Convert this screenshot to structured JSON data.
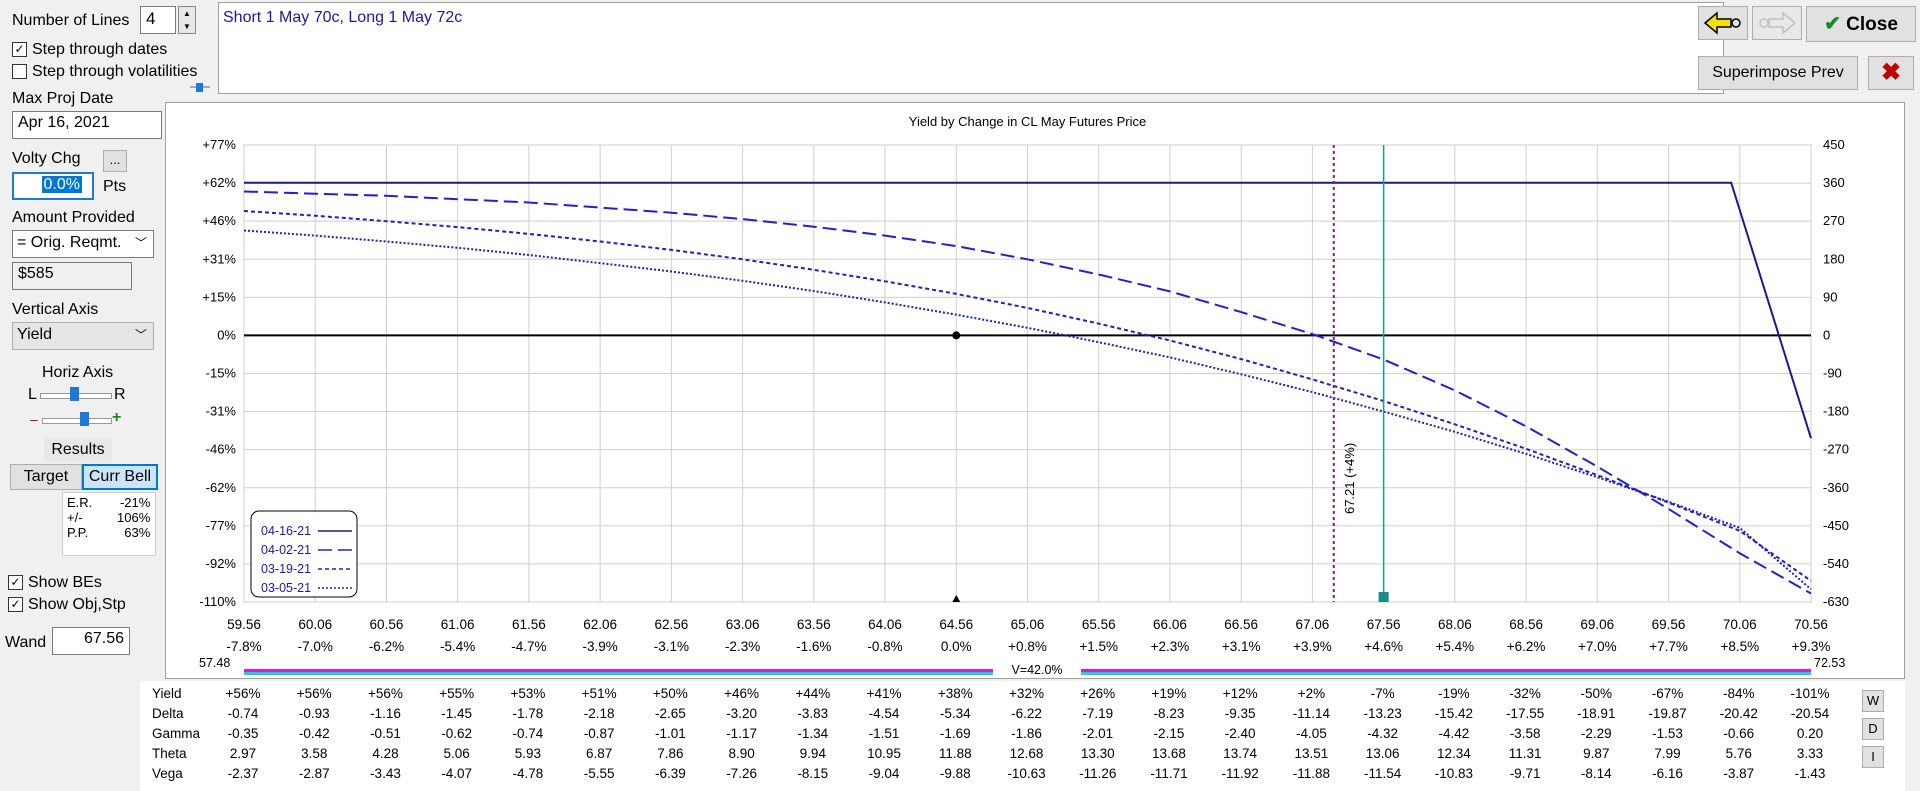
{
  "top": {
    "number_of_lines_label": "Number of Lines",
    "number_of_lines_value": "4",
    "step_dates_label": "Step through dates",
    "step_dates_checked": true,
    "step_vols_label": "Step through volatilities",
    "step_vols_checked": false,
    "description": "Short 1 May 70c, Long 1 May 72c",
    "close_label": "Close",
    "superimpose_label": "Superimpose Prev"
  },
  "left": {
    "max_proj_date_label": "Max Proj Date",
    "max_proj_date_value": "Apr 16, 2021",
    "volty_chg_label": "Volty Chg",
    "volty_chg_value": "0.0%",
    "pts_label": "Pts",
    "ellipsis_label": "...",
    "amount_provided_label": "Amount Provided",
    "amount_provided_value": "= Orig. Reqmt.",
    "amount_value": "$585",
    "vertical_axis_label": "Vertical Axis",
    "vertical_axis_value": "Yield",
    "horiz_axis_label": "Horiz Axis",
    "l_label": "L",
    "r_label": "R",
    "minus_label": "–",
    "plus_label": "+",
    "results_label": "Results",
    "target_label": "Target",
    "curr_bell_label": "Curr Bell",
    "stats": [
      {
        "k": "E.R.",
        "v": "-21%"
      },
      {
        "k": "+/-",
        "v": "106%"
      },
      {
        "k": "P.P.",
        "v": "63%"
      }
    ],
    "show_bes_label": "Show BEs",
    "show_bes_checked": true,
    "show_obj_label": "Show Obj,Stp",
    "show_obj_checked": true,
    "wand_label": "Wand",
    "wand_value": "67.56"
  },
  "chart_data": {
    "type": "line",
    "title": "Yield by Change in CL May Futures Price",
    "x_ticks": [
      "59.56",
      "60.06",
      "60.56",
      "61.06",
      "61.56",
      "62.06",
      "62.56",
      "63.06",
      "63.56",
      "64.06",
      "64.56",
      "65.06",
      "65.56",
      "66.06",
      "66.56",
      "67.06",
      "67.56",
      "68.06",
      "68.56",
      "69.06",
      "69.56",
      "70.06",
      "70.56"
    ],
    "x_pct_ticks": [
      "-7.8%",
      "-7.0%",
      "-6.2%",
      "-5.4%",
      "-4.7%",
      "-3.9%",
      "-3.1%",
      "-2.3%",
      "-1.6%",
      "-0.8%",
      "0.0%",
      "+0.8%",
      "+1.5%",
      "+2.3%",
      "+3.1%",
      "+3.9%",
      "+4.6%",
      "+5.4%",
      "+6.2%",
      "+7.0%",
      "+7.7%",
      "+8.5%",
      "+9.3%"
    ],
    "y_left_ticks": [
      "+77%",
      "+62%",
      "+46%",
      "+31%",
      "+15%",
      "0%",
      "-15%",
      "-31%",
      "-46%",
      "-62%",
      "-77%",
      "-92%",
      "-110%"
    ],
    "y_right_ticks": [
      "450",
      "360",
      "270",
      "180",
      "90",
      "0",
      "-90",
      "-180",
      "-270",
      "-360",
      "-450",
      "-540",
      "-630"
    ],
    "xlim": [
      59.56,
      70.56
    ],
    "ylim": [
      -630,
      450
    ],
    "grid": true,
    "legend_position": "bottom-left",
    "series": [
      {
        "name": "04-16-21",
        "style": "solid",
        "color": "#1a1a8c",
        "x": [
          59.56,
          60.06,
          60.56,
          61.06,
          61.56,
          62.06,
          62.56,
          63.06,
          63.56,
          64.06,
          64.56,
          65.06,
          65.56,
          66.06,
          66.56,
          67.06,
          67.56,
          68.06,
          68.56,
          69.06,
          69.56,
          70.0,
          70.56
        ],
        "y": [
          361,
          361,
          361,
          361,
          361,
          361,
          361,
          361,
          361,
          361,
          361,
          361,
          361,
          361,
          361,
          361,
          361,
          361,
          361,
          361,
          361,
          361,
          -243
        ]
      },
      {
        "name": "04-02-21",
        "style": "longdash",
        "color": "#2020d0",
        "x": [
          59.56,
          60.06,
          60.56,
          61.06,
          61.56,
          62.06,
          62.56,
          63.06,
          63.56,
          64.06,
          64.56,
          65.06,
          65.56,
          66.06,
          66.56,
          67.06,
          67.56,
          68.06,
          68.56,
          69.06,
          69.56,
          70.06,
          70.56
        ],
        "y": [
          340,
          335,
          330,
          322,
          314,
          302,
          290,
          275,
          257,
          236,
          211,
          180,
          144,
          104,
          55,
          3,
          -57,
          -130,
          -215,
          -310,
          -410,
          -515,
          -610
        ]
      },
      {
        "name": "03-19-21",
        "style": "shortdash",
        "color": "#2020c0",
        "x": [
          59.56,
          60.06,
          60.56,
          61.06,
          61.56,
          62.06,
          62.56,
          63.06,
          63.56,
          64.06,
          64.56,
          65.06,
          65.56,
          66.06,
          66.56,
          67.06,
          67.56,
          68.06,
          68.56,
          69.06,
          69.56,
          70.06,
          70.56
        ],
        "y": [
          294,
          283,
          270,
          256,
          240,
          222,
          202,
          180,
          155,
          128,
          98,
          65,
          28,
          -12,
          -56,
          -104,
          -155,
          -210,
          -268,
          -330,
          -395,
          -462,
          -580
        ]
      },
      {
        "name": "03-05-21",
        "style": "dotted",
        "color": "#2020b0",
        "x": [
          59.56,
          60.06,
          60.56,
          61.06,
          61.56,
          62.06,
          62.56,
          63.06,
          63.56,
          64.06,
          64.56,
          65.06,
          65.56,
          66.06,
          66.56,
          67.06,
          67.56,
          68.06,
          68.56,
          69.06,
          69.56,
          70.06,
          70.56
        ],
        "y": [
          248,
          236,
          222,
          207,
          190,
          171,
          151,
          129,
          105,
          78,
          49,
          18,
          -16,
          -52,
          -92,
          -134,
          -180,
          -228,
          -280,
          -335,
          -393,
          -455,
          -600
        ]
      }
    ],
    "breakeven_label": "67.21 (+4%)",
    "breakeven_x": 67.21,
    "wand_x": 67.56,
    "center_marker_x": 64.56,
    "range_low": "57.48",
    "range_high": "72.53",
    "vol_label": "V=42.0%"
  },
  "table": {
    "rows": [
      {
        "label": "Yield",
        "values": [
          "+56%",
          "+56%",
          "+56%",
          "+55%",
          "+53%",
          "+51%",
          "+50%",
          "+46%",
          "+44%",
          "+41%",
          "+38%",
          "+32%",
          "+26%",
          "+19%",
          "+12%",
          "+2%",
          "-7%",
          "-19%",
          "-32%",
          "-50%",
          "-67%",
          "-84%",
          "-101%"
        ]
      },
      {
        "label": "Delta",
        "values": [
          "-0.74",
          "-0.93",
          "-1.16",
          "-1.45",
          "-1.78",
          "-2.18",
          "-2.65",
          "-3.20",
          "-3.83",
          "-4.54",
          "-5.34",
          "-6.22",
          "-7.19",
          "-8.23",
          "-9.35",
          "-11.14",
          "-13.23",
          "-15.42",
          "-17.55",
          "-18.91",
          "-19.87",
          "-20.42",
          "-20.54"
        ]
      },
      {
        "label": "Gamma",
        "values": [
          "-0.35",
          "-0.42",
          "-0.51",
          "-0.62",
          "-0.74",
          "-0.87",
          "-1.01",
          "-1.17",
          "-1.34",
          "-1.51",
          "-1.69",
          "-1.86",
          "-2.01",
          "-2.15",
          "-2.40",
          "-4.05",
          "-4.32",
          "-4.42",
          "-3.58",
          "-2.29",
          "-1.53",
          "-0.66",
          "0.20"
        ]
      },
      {
        "label": "Theta",
        "values": [
          "2.97",
          "3.58",
          "4.28",
          "5.06",
          "5.93",
          "6.87",
          "7.86",
          "8.90",
          "9.94",
          "10.95",
          "11.88",
          "12.68",
          "13.30",
          "13.68",
          "13.74",
          "13.51",
          "13.06",
          "12.34",
          "11.31",
          "9.87",
          "7.99",
          "5.76",
          "3.33"
        ]
      },
      {
        "label": "Vega",
        "values": [
          "-2.37",
          "-2.87",
          "-3.43",
          "-4.07",
          "-4.78",
          "-5.55",
          "-6.39",
          "-7.26",
          "-8.15",
          "-9.04",
          "-9.88",
          "-10.63",
          "-11.26",
          "-11.71",
          "-11.92",
          "-11.88",
          "-11.54",
          "-10.83",
          "-9.71",
          "-8.14",
          "-6.16",
          "-3.87",
          "-1.43"
        ]
      }
    ],
    "side_buttons": [
      "W",
      "D",
      "I"
    ]
  }
}
